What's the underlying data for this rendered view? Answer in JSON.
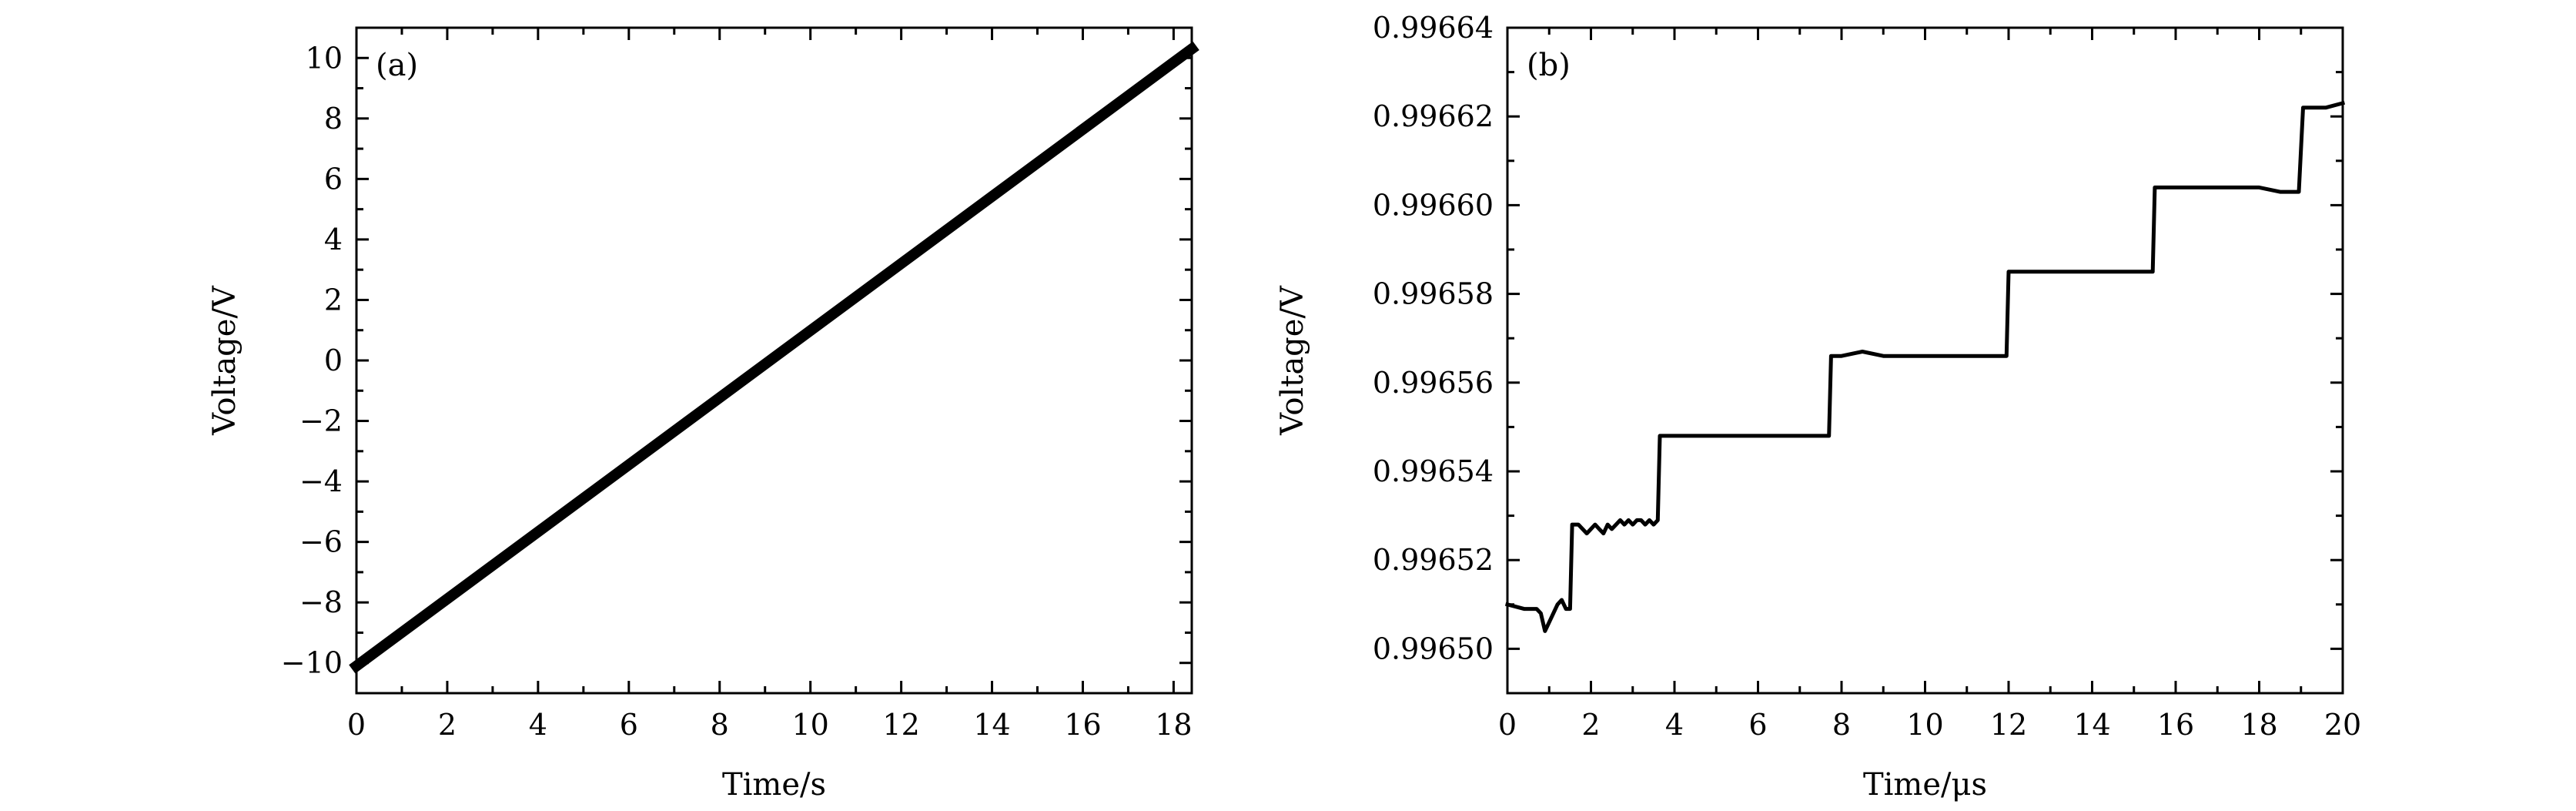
{
  "colors": {
    "line": "#000000",
    "axis": "#000000",
    "background": "#ffffff"
  },
  "chart_data": [
    {
      "type": "line",
      "panel_label": "(a)",
      "xlabel": "Time/s",
      "ylabel": "Voltage/V",
      "xlim": [
        0,
        18.4
      ],
      "ylim": [
        -11,
        11
      ],
      "xticks": [
        0,
        2,
        4,
        6,
        8,
        10,
        12,
        14,
        16,
        18
      ],
      "xtick_labels": [
        "0",
        "2",
        "4",
        "6",
        "8",
        "10",
        "12",
        "14",
        "16",
        "18"
      ],
      "yticks": [
        -10,
        -8,
        -6,
        -4,
        -2,
        0,
        2,
        4,
        6,
        8,
        10
      ],
      "ytick_labels": [
        "−10",
        "−8",
        "−6",
        "−4",
        "−2",
        "0",
        "2",
        "4",
        "6",
        "8",
        "10"
      ],
      "grid": false,
      "series": [
        {
          "name": "Voltage",
          "x": [
            0,
            18.4
          ],
          "y": [
            -10.1,
            10.3
          ]
        }
      ]
    },
    {
      "type": "line",
      "panel_label": "(b)",
      "xlabel": "Time/μs",
      "ylabel": "Voltage/V",
      "xlim": [
        0,
        20
      ],
      "ylim": [
        0.99649,
        0.99664
      ],
      "xticks": [
        0,
        2,
        4,
        6,
        8,
        10,
        12,
        14,
        16,
        18,
        20
      ],
      "xtick_labels": [
        "0",
        "2",
        "4",
        "6",
        "8",
        "10",
        "12",
        "14",
        "16",
        "18",
        "20"
      ],
      "yticks": [
        0.9965,
        0.99652,
        0.99654,
        0.99656,
        0.99658,
        0.9966,
        0.99662,
        0.99664
      ],
      "ytick_labels": [
        "0.99650",
        "0.99652",
        "0.99654",
        "0.99656",
        "0.99658",
        "0.99660",
        "0.99662",
        "0.99664"
      ],
      "grid": false,
      "series": [
        {
          "name": "Voltage",
          "x": [
            0,
            0.4,
            0.7,
            0.8,
            0.9,
            1.0,
            1.1,
            1.2,
            1.3,
            1.4,
            1.5,
            1.55,
            1.7,
            1.9,
            2.0,
            2.1,
            2.2,
            2.3,
            2.4,
            2.5,
            2.6,
            2.7,
            2.8,
            2.9,
            3.0,
            3.1,
            3.2,
            3.3,
            3.4,
            3.5,
            3.6,
            3.65,
            4.0,
            4.5,
            5.0,
            5.5,
            6.0,
            6.5,
            7.0,
            7.5,
            7.7,
            7.75,
            8.0,
            8.5,
            9.0,
            9.5,
            10.0,
            10.5,
            11.0,
            11.5,
            11.95,
            12.0,
            12.5,
            13.0,
            13.5,
            14.0,
            14.5,
            15.0,
            15.45,
            15.5,
            16.0,
            16.5,
            17.0,
            17.5,
            18.0,
            18.5,
            18.95,
            19.05,
            19.3,
            19.6,
            20.0
          ],
          "y": [
            0.99651,
            0.996509,
            0.996509,
            0.996508,
            0.996504,
            0.996506,
            0.996508,
            0.99651,
            0.996511,
            0.996509,
            0.996509,
            0.996528,
            0.996528,
            0.996526,
            0.996527,
            0.996528,
            0.996527,
            0.996526,
            0.996528,
            0.996527,
            0.996528,
            0.996529,
            0.996528,
            0.996529,
            0.996528,
            0.996529,
            0.996529,
            0.996528,
            0.996529,
            0.996528,
            0.996529,
            0.996548,
            0.996548,
            0.996548,
            0.996548,
            0.996548,
            0.996548,
            0.996548,
            0.996548,
            0.996548,
            0.996548,
            0.996566,
            0.996566,
            0.996567,
            0.996566,
            0.996566,
            0.996566,
            0.996566,
            0.996566,
            0.996566,
            0.996566,
            0.996585,
            0.996585,
            0.996585,
            0.996585,
            0.996585,
            0.996585,
            0.996585,
            0.996585,
            0.996604,
            0.996604,
            0.996604,
            0.996604,
            0.996604,
            0.996604,
            0.996603,
            0.996603,
            0.996622,
            0.996622,
            0.996622,
            0.996623
          ]
        }
      ]
    }
  ]
}
